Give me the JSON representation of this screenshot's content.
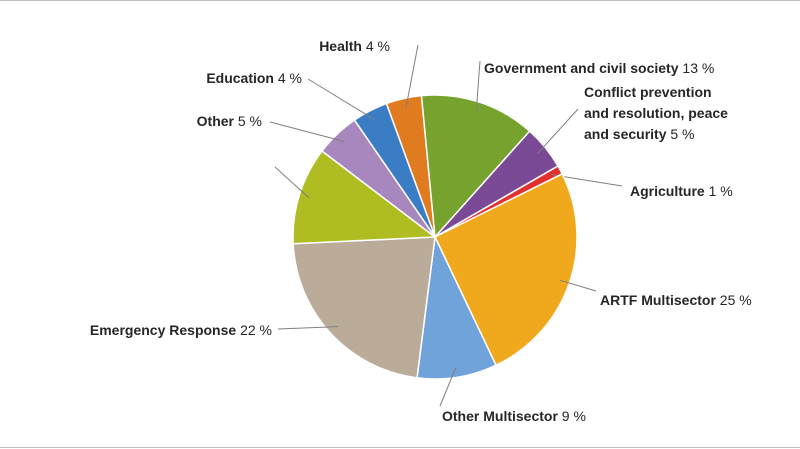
{
  "chart_data": {
    "type": "pie",
    "title": "",
    "legend": "none",
    "slices": [
      {
        "name": "Health",
        "value": 4,
        "label": "4 %",
        "color": "#E07B20"
      },
      {
        "name": "Government and civil society",
        "value": 13,
        "label": "13 %",
        "color": "#76A22E"
      },
      {
        "name": "Conflict prevention and resolution, peace and security",
        "name_lines": [
          "Conflict prevention",
          "and resolution, peace",
          "and security"
        ],
        "value": 5,
        "label": "5 %",
        "color": "#7B4A96"
      },
      {
        "name": "Agriculture",
        "value": 1,
        "label": "1 %",
        "color": "#E0312F"
      },
      {
        "name": "ARTF Multisector",
        "value": 25,
        "label": "25 %",
        "color": "#F0A81C"
      },
      {
        "name": "Other Multisector",
        "value": 9,
        "label": "9 %",
        "color": "#6FA3D9"
      },
      {
        "name": "Emergency Response",
        "value": 22,
        "label": "22 %",
        "color": "#BAAC98"
      },
      {
        "name": "",
        "value": 11,
        "label": "",
        "color": "#AFBD22"
      },
      {
        "name": "Other",
        "value": 5,
        "label": "5 %",
        "color": "#A887BF"
      },
      {
        "name": "Education",
        "value": 4,
        "label": "4 %",
        "color": "#3A7DC4"
      }
    ]
  }
}
